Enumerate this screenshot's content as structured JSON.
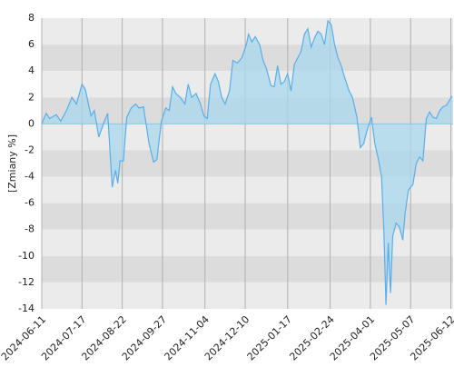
{
  "chart_data": {
    "type": "area",
    "y_label": "[Zmiany %]",
    "x": [
      "2024-06-11",
      "2024-06-15",
      "2024-06-18",
      "2024-06-24",
      "2024-06-28",
      "2024-07-03",
      "2024-07-08",
      "2024-07-12",
      "2024-07-17",
      "2024-07-20",
      "2024-07-25",
      "2024-07-28",
      "2024-08-01",
      "2024-08-06",
      "2024-08-09",
      "2024-08-13",
      "2024-08-16",
      "2024-08-18",
      "2024-08-20",
      "2024-08-23",
      "2024-08-26",
      "2024-08-30",
      "2024-09-03",
      "2024-09-06",
      "2024-09-10",
      "2024-09-15",
      "2024-09-19",
      "2024-09-22",
      "2024-09-26",
      "2024-09-30",
      "2024-10-03",
      "2024-10-06",
      "2024-10-09",
      "2024-10-13",
      "2024-10-17",
      "2024-10-20",
      "2024-10-23",
      "2024-10-27",
      "2024-10-31",
      "2024-11-03",
      "2024-11-06",
      "2024-11-09",
      "2024-11-13",
      "2024-11-16",
      "2024-11-19",
      "2024-11-22",
      "2024-11-26",
      "2024-11-29",
      "2024-12-03",
      "2024-12-07",
      "2024-12-11",
      "2024-12-13",
      "2024-12-16",
      "2024-12-19",
      "2024-12-23",
      "2024-12-26",
      "2024-12-29",
      "2025-01-02",
      "2025-01-05",
      "2025-01-08",
      "2025-01-11",
      "2025-01-14",
      "2025-01-17",
      "2025-01-20",
      "2025-01-23",
      "2025-01-26",
      "2025-01-29",
      "2025-02-01",
      "2025-02-04",
      "2025-02-07",
      "2025-02-10",
      "2025-02-13",
      "2025-02-16",
      "2025-02-19",
      "2025-02-22",
      "2025-02-25",
      "2025-02-28",
      "2025-03-03",
      "2025-03-06",
      "2025-03-09",
      "2025-03-13",
      "2025-03-16",
      "2025-03-20",
      "2025-03-23",
      "2025-03-26",
      "2025-03-29",
      "2025-04-02",
      "2025-04-05",
      "2025-04-08",
      "2025-04-11",
      "2025-04-13",
      "2025-04-15",
      "2025-04-17",
      "2025-04-19",
      "2025-04-21",
      "2025-04-24",
      "2025-04-27",
      "2025-04-30",
      "2025-05-02",
      "2025-05-05",
      "2025-05-09",
      "2025-05-12",
      "2025-05-15",
      "2025-05-18",
      "2025-05-21",
      "2025-05-24",
      "2025-05-27",
      "2025-05-30",
      "2025-06-02",
      "2025-06-05",
      "2025-06-08",
      "2025-06-13"
    ],
    "values": [
      0,
      0.8,
      0.4,
      0.7,
      0.2,
      1.0,
      2.0,
      1.5,
      3.0,
      2.6,
      0.6,
      1.0,
      -1.0,
      0.2,
      0.8,
      -4.8,
      -3.5,
      -4.5,
      -2.8,
      -2.8,
      0.5,
      1.2,
      1.5,
      1.2,
      1.3,
      -1.5,
      -2.9,
      -2.7,
      0.2,
      1.2,
      1.0,
      2.8,
      2.3,
      2.0,
      1.5,
      3.0,
      2.0,
      2.3,
      1.5,
      0.6,
      0.4,
      3.0,
      3.8,
      3.2,
      2.0,
      1.5,
      2.5,
      4.8,
      4.6,
      5.0,
      6.0,
      6.8,
      6.2,
      6.6,
      6.0,
      4.8,
      4.2,
      2.9,
      2.8,
      4.4,
      3.0,
      3.2,
      3.8,
      2.5,
      4.5,
      5.0,
      5.5,
      6.8,
      7.2,
      5.8,
      6.5,
      7.0,
      6.8,
      6.0,
      7.8,
      7.5,
      6.0,
      5.0,
      4.4,
      3.5,
      2.5,
      2.0,
      0.5,
      -1.8,
      -1.5,
      -0.5,
      0.5,
      -1.5,
      -2.6,
      -4.0,
      -8.0,
      -13.7,
      -9.0,
      -12.8,
      -8.5,
      -7.5,
      -7.8,
      -8.8,
      -6.8,
      -5.0,
      -4.6,
      -3.0,
      -2.5,
      -2.8,
      0.4,
      0.9,
      0.5,
      0.4,
      1.0,
      1.3,
      1.4,
      2.1
    ],
    "color": "#5aaeea",
    "fill": "#a8d8ec",
    "xlim": [
      "2024-06-11",
      "2025-06-14"
    ],
    "xticks": [
      "2024-06-11",
      "2024-07-17",
      "2024-08-22",
      "2024-09-27",
      "2024-11-04",
      "2024-12-10",
      "2025-01-17",
      "2025-02-24",
      "2025-04-01",
      "2025-05-07",
      "2025-06-12"
    ],
    "ylim": [
      -14,
      8
    ],
    "yticks": [
      8,
      6,
      4,
      2,
      0,
      -2,
      -4,
      -6,
      -8,
      -10,
      -12,
      -14
    ],
    "grid": true
  }
}
